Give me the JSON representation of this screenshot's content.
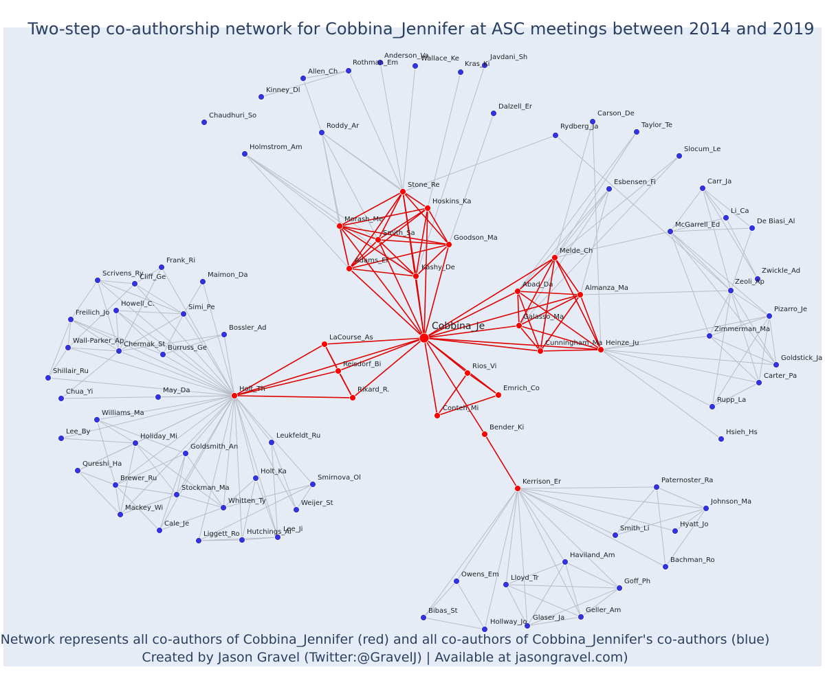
{
  "title": "Two-step co-authorship network for Cobbina_Jennifer at ASC meetings between 2014 and 2019",
  "caption": {
    "line1": "Network represents all co-authors of Cobbina_Jennifer (red) and all co-authors of Cobbina_Jennifer's co-authors (blue)",
    "line2": "Created by Jason Gravel (Twitter:@GravelJ) | Available at jasongravel.com)"
  },
  "colors": {
    "background": "#e5ecf6",
    "red": "#ff0000",
    "blue": "#3333dd",
    "red_edge": "#e00000",
    "grey_edge": "#b8bcc6",
    "title": "#2a3f5f"
  },
  "center": "Cobbina_Je",
  "red_nodes": [
    "Cobbina_Je",
    "Stone_Re",
    "Hoskins_Ka",
    "Morash_Me",
    "Smith_Sa",
    "Goodson_Ma",
    "Adams_El",
    "Kashy_De",
    "Abad_Da",
    "Almanza_Ma",
    "Galasso_Ma",
    "Cunningham_Ma",
    "Heinze_Ju",
    "Melde_Ch",
    "LaCourse_As",
    "Reisdorf_Bi",
    "Rikard_R.",
    "Holt_Th",
    "Rios_Vi",
    "Emrich_Co",
    "Conteh_Mi",
    "Bender_Ki",
    "Kerrison_Er"
  ],
  "blue_nodes": [
    "Allen_Ch",
    "Anderson_Va",
    "Rothman_Em",
    "Wallace_Ke",
    "Kras_Ki",
    "Javdani_Sh",
    "Kinney_Dl",
    "Chaudhuri_So",
    "Roddy_Ar",
    "Holmstrom_Am",
    "Dalzell_Er",
    "Carson_De",
    "Rydberg_Ja",
    "Taylor_Te",
    "Slocum_Le",
    "Esbensen_Fi",
    "Carr_Ja",
    "Li_Ca",
    "De Biasi_Al",
    "McGarrell_Ed",
    "Zwickle_Ad",
    "Zeoli_Ap",
    "Pizarro_Je",
    "Zimmerman_Ma",
    "Goldstick_Ja",
    "Carter_Pa",
    "Rupp_La",
    "Hsieh_Hs",
    "Frank_Ri",
    "Scrivens_Ry",
    "Cliff_Ge",
    "Maimon_Da",
    "Howell_C.",
    "Freilich_Jo",
    "Simi_Pe",
    "Bossler_Ad",
    "Wall-Parker_Ap",
    "Chermak_St",
    "Burruss_Ge",
    "Shillair_Ru",
    "Chua_Yi",
    "May_Da",
    "Williams_Ma",
    "Lee_By",
    "Holiday_Mi",
    "Goldsmith_An",
    "Leukfeldt_Ru",
    "Qureshi_Ha",
    "Brewer_Ru",
    "Holt_Ka",
    "Smirnova_Ol",
    "Stockman_Ma",
    "Mackey_Wi",
    "Whitten_Ty",
    "Weijer_St",
    "Cale_Je",
    "Liggett_Ro",
    "Hutchings_Al",
    "Lee_Ji",
    "Paternoster_Ra",
    "Johnson_Ma",
    "Hyatt_Jo",
    "Smith_Li",
    "Bachman_Ro",
    "Haviland_Am",
    "Owens_Em",
    "Lloyd_Tr",
    "Goff_Ph",
    "Geller_Am",
    "Glaser_Ja",
    "Bibas_St",
    "Hollway_Jo"
  ],
  "red_edges": [
    [
      "Cobbina_Je",
      "Stone_Re"
    ],
    [
      "Cobbina_Je",
      "Hoskins_Ka"
    ],
    [
      "Cobbina_Je",
      "Morash_Me"
    ],
    [
      "Cobbina_Je",
      "Smith_Sa"
    ],
    [
      "Cobbina_Je",
      "Goodson_Ma"
    ],
    [
      "Cobbina_Je",
      "Adams_El"
    ],
    [
      "Cobbina_Je",
      "Kashy_De"
    ],
    [
      "Stone_Re",
      "Hoskins_Ka"
    ],
    [
      "Stone_Re",
      "Morash_Me"
    ],
    [
      "Stone_Re",
      "Smith_Sa"
    ],
    [
      "Stone_Re",
      "Goodson_Ma"
    ],
    [
      "Stone_Re",
      "Adams_El"
    ],
    [
      "Stone_Re",
      "Kashy_De"
    ],
    [
      "Hoskins_Ka",
      "Morash_Me"
    ],
    [
      "Hoskins_Ka",
      "Smith_Sa"
    ],
    [
      "Hoskins_Ka",
      "Goodson_Ma"
    ],
    [
      "Hoskins_Ka",
      "Adams_El"
    ],
    [
      "Hoskins_Ka",
      "Kashy_De"
    ],
    [
      "Morash_Me",
      "Smith_Sa"
    ],
    [
      "Morash_Me",
      "Goodson_Ma"
    ],
    [
      "Morash_Me",
      "Adams_El"
    ],
    [
      "Morash_Me",
      "Kashy_De"
    ],
    [
      "Smith_Sa",
      "Goodson_Ma"
    ],
    [
      "Smith_Sa",
      "Adams_El"
    ],
    [
      "Smith_Sa",
      "Kashy_De"
    ],
    [
      "Goodson_Ma",
      "Adams_El"
    ],
    [
      "Goodson_Ma",
      "Kashy_De"
    ],
    [
      "Adams_El",
      "Kashy_De"
    ],
    [
      "Cobbina_Je",
      "Abad_Da"
    ],
    [
      "Cobbina_Je",
      "Almanza_Ma"
    ],
    [
      "Cobbina_Je",
      "Galasso_Ma"
    ],
    [
      "Cobbina_Je",
      "Cunningham_Ma"
    ],
    [
      "Cobbina_Je",
      "Heinze_Ju"
    ],
    [
      "Cobbina_Je",
      "Melde_Ch"
    ],
    [
      "Abad_Da",
      "Almanza_Ma"
    ],
    [
      "Abad_Da",
      "Galasso_Ma"
    ],
    [
      "Abad_Da",
      "Cunningham_Ma"
    ],
    [
      "Abad_Da",
      "Heinze_Ju"
    ],
    [
      "Abad_Da",
      "Melde_Ch"
    ],
    [
      "Almanza_Ma",
      "Galasso_Ma"
    ],
    [
      "Almanza_Ma",
      "Cunningham_Ma"
    ],
    [
      "Almanza_Ma",
      "Heinze_Ju"
    ],
    [
      "Almanza_Ma",
      "Melde_Ch"
    ],
    [
      "Galasso_Ma",
      "Cunningham_Ma"
    ],
    [
      "Galasso_Ma",
      "Heinze_Ju"
    ],
    [
      "Galasso_Ma",
      "Melde_Ch"
    ],
    [
      "Cunningham_Ma",
      "Heinze_Ju"
    ],
    [
      "Cunningham_Ma",
      "Melde_Ch"
    ],
    [
      "Heinze_Ju",
      "Melde_Ch"
    ],
    [
      "Cobbina_Je",
      "LaCourse_As"
    ],
    [
      "Cobbina_Je",
      "Reisdorf_Bi"
    ],
    [
      "Cobbina_Je",
      "Rikard_R."
    ],
    [
      "Cobbina_Je",
      "Holt_Th"
    ],
    [
      "LaCourse_As",
      "Reisdorf_Bi"
    ],
    [
      "LaCourse_As",
      "Rikard_R."
    ],
    [
      "LaCourse_As",
      "Holt_Th"
    ],
    [
      "Reisdorf_Bi",
      "Rikard_R."
    ],
    [
      "Reisdorf_Bi",
      "Holt_Th"
    ],
    [
      "Rikard_R.",
      "Holt_Th"
    ],
    [
      "Cobbina_Je",
      "Rios_Vi"
    ],
    [
      "Cobbina_Je",
      "Emrich_Co"
    ],
    [
      "Cobbina_Je",
      "Conteh_Mi"
    ],
    [
      "Rios_Vi",
      "Emrich_Co"
    ],
    [
      "Rios_Vi",
      "Conteh_Mi"
    ],
    [
      "Emrich_Co",
      "Conteh_Mi"
    ],
    [
      "Cobbina_Je",
      "Bender_Ki"
    ],
    [
      "Bender_Ki",
      "Kerrison_Er"
    ]
  ],
  "grey_edges": [
    [
      "Roddy_Ar",
      "Stone_Re"
    ],
    [
      "Roddy_Ar",
      "Morash_Me"
    ],
    [
      "Roddy_Ar",
      "Hoskins_Ka"
    ],
    [
      "Roddy_Ar",
      "Adams_El"
    ],
    [
      "Roddy_Ar",
      "Smith_Sa"
    ],
    [
      "Roddy_Ar",
      "Allen_Ch"
    ],
    [
      "Allen_Ch",
      "Rothman_Em"
    ],
    [
      "Kinney_Dl",
      "Rothman_Em"
    ],
    [
      "Rothman_Em",
      "Stone_Re"
    ],
    [
      "Anderson_Va",
      "Stone_Re"
    ],
    [
      "Wallace_Ke",
      "Stone_Re"
    ],
    [
      "Kras_Ki",
      "Hoskins_Ka"
    ],
    [
      "Javdani_Sh",
      "Kashy_De"
    ],
    [
      "Dalzell_Er",
      "Goodson_Ma"
    ],
    [
      "Rydberg_Ja",
      "Stone_Re"
    ],
    [
      "Holmstrom_Am",
      "Morash_Me"
    ],
    [
      "Holmstrom_Am",
      "Adams_El"
    ],
    [
      "Holmstrom_Am",
      "Kashy_De"
    ],
    [
      "Holmstrom_Am",
      "Smith_Sa"
    ],
    [
      "Carson_De",
      "Melde_Ch"
    ],
    [
      "Carson_De",
      "Heinze_Ju"
    ],
    [
      "Taylor_Te",
      "Melde_Ch"
    ],
    [
      "Taylor_Te",
      "Abad_Da"
    ],
    [
      "Slocum_Le",
      "Melde_Ch"
    ],
    [
      "Slocum_Le",
      "Galasso_Ma"
    ],
    [
      "Esbensen_Fi",
      "Melde_Ch"
    ],
    [
      "Esbensen_Fi",
      "Almanza_Ma"
    ],
    [
      "Esbensen_Fi",
      "Abad_Da"
    ],
    [
      "Esbensen_Fi",
      "Galasso_Ma"
    ],
    [
      "Rydberg_Ja",
      "Zeoli_Ap"
    ],
    [
      "McGarrell_Ed",
      "Melde_Ch"
    ],
    [
      "McGarrell_Ed",
      "Carr_Ja"
    ],
    [
      "McGarrell_Ed",
      "Li_Ca"
    ],
    [
      "McGarrell_Ed",
      "De Biasi_Al"
    ],
    [
      "McGarrell_Ed",
      "Zimmerman_Ma"
    ],
    [
      "McGarrell_Ed",
      "Pizarro_Je"
    ],
    [
      "McGarrell_Ed",
      "Goldstick_Ja"
    ],
    [
      "McGarrell_Ed",
      "Zeoli_Ap"
    ],
    [
      "Carr_Ja",
      "Li_Ca"
    ],
    [
      "Carr_Ja",
      "De Biasi_Al"
    ],
    [
      "Carr_Ja",
      "Zwickle_Ad"
    ],
    [
      "Carr_Ja",
      "Zeoli_Ap"
    ],
    [
      "Li_Ca",
      "Zwickle_Ad"
    ],
    [
      "De Biasi_Al",
      "Zeoli_Ap"
    ],
    [
      "Zeoli_Ap",
      "Almanza_Ma"
    ],
    [
      "Zeoli_Ap",
      "Pizarro_Je"
    ],
    [
      "Zeoli_Ap",
      "Zimmerman_Ma"
    ],
    [
      "Zeoli_Ap",
      "Goldstick_Ja"
    ],
    [
      "Zeoli_Ap",
      "Carter_Pa"
    ],
    [
      "Zeoli_Ap",
      "Rupp_La"
    ],
    [
      "Pizarro_Je",
      "Heinze_Ju"
    ],
    [
      "Pizarro_Je",
      "Zimmerman_Ma"
    ],
    [
      "Pizarro_Je",
      "Carter_Pa"
    ],
    [
      "Pizarro_Je",
      "Goldstick_Ja"
    ],
    [
      "Pizarro_Je",
      "Rupp_La"
    ],
    [
      "Zimmerman_Ma",
      "Heinze_Ju"
    ],
    [
      "Zimmerman_Ma",
      "Goldstick_Ja"
    ],
    [
      "Zimmerman_Ma",
      "Carter_Pa"
    ],
    [
      "Carter_Pa",
      "Heinze_Ju"
    ],
    [
      "Carter_Pa",
      "Rupp_La"
    ],
    [
      "Goldstick_Ja",
      "Heinze_Ju"
    ],
    [
      "Rupp_La",
      "Heinze_Ju"
    ],
    [
      "Hsieh_Hs",
      "Heinze_Ju"
    ],
    [
      "Holt_Th",
      "Frank_Ri"
    ],
    [
      "Holt_Th",
      "Scrivens_Ry"
    ],
    [
      "Holt_Th",
      "Cliff_Ge"
    ],
    [
      "Holt_Th",
      "Maimon_Da"
    ],
    [
      "Holt_Th",
      "Howell_C."
    ],
    [
      "Holt_Th",
      "Freilich_Jo"
    ],
    [
      "Holt_Th",
      "Simi_Pe"
    ],
    [
      "Holt_Th",
      "Bossler_Ad"
    ],
    [
      "Holt_Th",
      "Wall-Parker_Ap"
    ],
    [
      "Holt_Th",
      "Chermak_St"
    ],
    [
      "Holt_Th",
      "Burruss_Ge"
    ],
    [
      "Holt_Th",
      "Shillair_Ru"
    ],
    [
      "Holt_Th",
      "Chua_Yi"
    ],
    [
      "Holt_Th",
      "May_Da"
    ],
    [
      "Holt_Th",
      "Williams_Ma"
    ],
    [
      "Holt_Th",
      "Lee_By"
    ],
    [
      "Holt_Th",
      "Holiday_Mi"
    ],
    [
      "Holt_Th",
      "Goldsmith_An"
    ],
    [
      "Holt_Th",
      "Leukfeldt_Ru"
    ],
    [
      "Holt_Th",
      "Qureshi_Ha"
    ],
    [
      "Holt_Th",
      "Brewer_Ru"
    ],
    [
      "Holt_Th",
      "Holt_Ka"
    ],
    [
      "Holt_Th",
      "Smirnova_Ol"
    ],
    [
      "Holt_Th",
      "Stockman_Ma"
    ],
    [
      "Holt_Th",
      "Mackey_Wi"
    ],
    [
      "Holt_Th",
      "Whitten_Ty"
    ],
    [
      "Holt_Th",
      "Weijer_St"
    ],
    [
      "Holt_Th",
      "Cale_Je"
    ],
    [
      "Holt_Th",
      "Liggett_Ro"
    ],
    [
      "Holt_Th",
      "Hutchings_Al"
    ],
    [
      "Holt_Th",
      "Lee_Ji"
    ],
    [
      "Scrivens_Ry",
      "Cliff_Ge"
    ],
    [
      "Scrivens_Ry",
      "Freilich_Jo"
    ],
    [
      "Scrivens_Ry",
      "Chermak_St"
    ],
    [
      "Scrivens_Ry",
      "Simi_Pe"
    ],
    [
      "Cliff_Ge",
      "Frank_Ri"
    ],
    [
      "Cliff_Ge",
      "Wall-Parker_Ap"
    ],
    [
      "Cliff_Ge",
      "Simi_Pe"
    ],
    [
      "Freilich_Jo",
      "Chermak_St"
    ],
    [
      "Freilich_Jo",
      "Shillair_Ru"
    ],
    [
      "Freilich_Jo",
      "Wall-Parker_Ap"
    ],
    [
      "Freilich_Jo",
      "Burruss_Ge"
    ],
    [
      "Howell_C.",
      "Chermak_St"
    ],
    [
      "Howell_C.",
      "Burruss_Ge"
    ],
    [
      "Howell_C.",
      "Simi_Pe"
    ],
    [
      "Chermak_St",
      "Simi_Pe"
    ],
    [
      "Chermak_St",
      "Wall-Parker_Ap"
    ],
    [
      "Chermak_St",
      "Chua_Yi"
    ],
    [
      "Chermak_St",
      "Bossler_Ad"
    ],
    [
      "Burruss_Ge",
      "Bossler_Ad"
    ],
    [
      "Wall-Parker_Ap",
      "Shillair_Ru"
    ],
    [
      "Simi_Pe",
      "Burruss_Ge"
    ],
    [
      "Simi_Pe",
      "Maimon_Da"
    ],
    [
      "Frank_Ri",
      "Chermak_St"
    ],
    [
      "Williams_Ma",
      "Holiday_Mi"
    ],
    [
      "Williams_Ma",
      "Brewer_Ru"
    ],
    [
      "Williams_Ma",
      "Goldsmith_An"
    ],
    [
      "Lee_By",
      "Holiday_Mi"
    ],
    [
      "Holiday_Mi",
      "Qureshi_Ha"
    ],
    [
      "Holiday_Mi",
      "Stockman_Ma"
    ],
    [
      "Holiday_Mi",
      "Mackey_Wi"
    ],
    [
      "Holiday_Mi",
      "Whitten_Ty"
    ],
    [
      "Goldsmith_An",
      "Brewer_Ru"
    ],
    [
      "Goldsmith_An",
      "Stockman_Ma"
    ],
    [
      "Goldsmith_An",
      "Cale_Je"
    ],
    [
      "Goldsmith_An",
      "Whitten_Ty"
    ],
    [
      "Qureshi_Ha",
      "Brewer_Ru"
    ],
    [
      "Qureshi_Ha",
      "Mackey_Wi"
    ],
    [
      "Brewer_Ru",
      "Stockman_Ma"
    ],
    [
      "Brewer_Ru",
      "Mackey_Wi"
    ],
    [
      "Brewer_Ru",
      "Cale_Je"
    ],
    [
      "Stockman_Ma",
      "Mackey_Wi"
    ],
    [
      "Stockman_Ma",
      "Whitten_Ty"
    ],
    [
      "Cale_Je",
      "Whitten_Ty"
    ],
    [
      "Whitten_Ty",
      "Smirnova_Ol"
    ],
    [
      "Whitten_Ty",
      "Holt_Ka"
    ],
    [
      "Leukfeldt_Ru",
      "Weijer_St"
    ],
    [
      "Leukfeldt_Ru",
      "Lee_Ji"
    ],
    [
      "Smirnova_Ol",
      "Weijer_St"
    ],
    [
      "Smirnova_Ol",
      "Liggett_Ro"
    ],
    [
      "Holt_Ka",
      "Hutchings_Al"
    ],
    [
      "Holt_Ka",
      "Lee_Ji"
    ],
    [
      "Liggett_Ro",
      "Hutchings_Al"
    ],
    [
      "Hutchings_Al",
      "Lee_Ji"
    ],
    [
      "Liggett_Ro",
      "Lee_Ji"
    ],
    [
      "Kerrison_Er",
      "Paternoster_Ra"
    ],
    [
      "Kerrison_Er",
      "Johnson_Ma"
    ],
    [
      "Kerrison_Er",
      "Hyatt_Jo"
    ],
    [
      "Kerrison_Er",
      "Smith_Li"
    ],
    [
      "Kerrison_Er",
      "Bachman_Ro"
    ],
    [
      "Kerrison_Er",
      "Haviland_Am"
    ],
    [
      "Kerrison_Er",
      "Owens_Em"
    ],
    [
      "Kerrison_Er",
      "Lloyd_Tr"
    ],
    [
      "Kerrison_Er",
      "Goff_Ph"
    ],
    [
      "Kerrison_Er",
      "Geller_Am"
    ],
    [
      "Kerrison_Er",
      "Glaser_Ja"
    ],
    [
      "Kerrison_Er",
      "Bibas_St"
    ],
    [
      "Kerrison_Er",
      "Hollway_Jo"
    ],
    [
      "Paternoster_Ra",
      "Johnson_Ma"
    ],
    [
      "Paternoster_Ra",
      "Smith_Li"
    ],
    [
      "Paternoster_Ra",
      "Bachman_Ro"
    ],
    [
      "Johnson_Ma",
      "Smith_Li"
    ],
    [
      "Johnson_Ma",
      "Bachman_Ro"
    ],
    [
      "Johnson_Ma",
      "Hyatt_Jo"
    ],
    [
      "Haviland_Am",
      "Lloyd_Tr"
    ],
    [
      "Haviland_Am",
      "Goff_Ph"
    ],
    [
      "Haviland_Am",
      "Geller_Am"
    ],
    [
      "Haviland_Am",
      "Glaser_Ja"
    ],
    [
      "Lloyd_Tr",
      "Goff_Ph"
    ],
    [
      "Lloyd_Tr",
      "Geller_Am"
    ],
    [
      "Lloyd_Tr",
      "Glaser_Ja"
    ],
    [
      "Goff_Ph",
      "Geller_Am"
    ],
    [
      "Goff_Ph",
      "Glaser_Ja"
    ],
    [
      "Geller_Am",
      "Glaser_Ja"
    ],
    [
      "Owens_Em",
      "Bibas_St"
    ],
    [
      "Owens_Em",
      "Hollway_Jo"
    ],
    [
      "Bibas_St",
      "Hollway_Jo"
    ]
  ]
}
